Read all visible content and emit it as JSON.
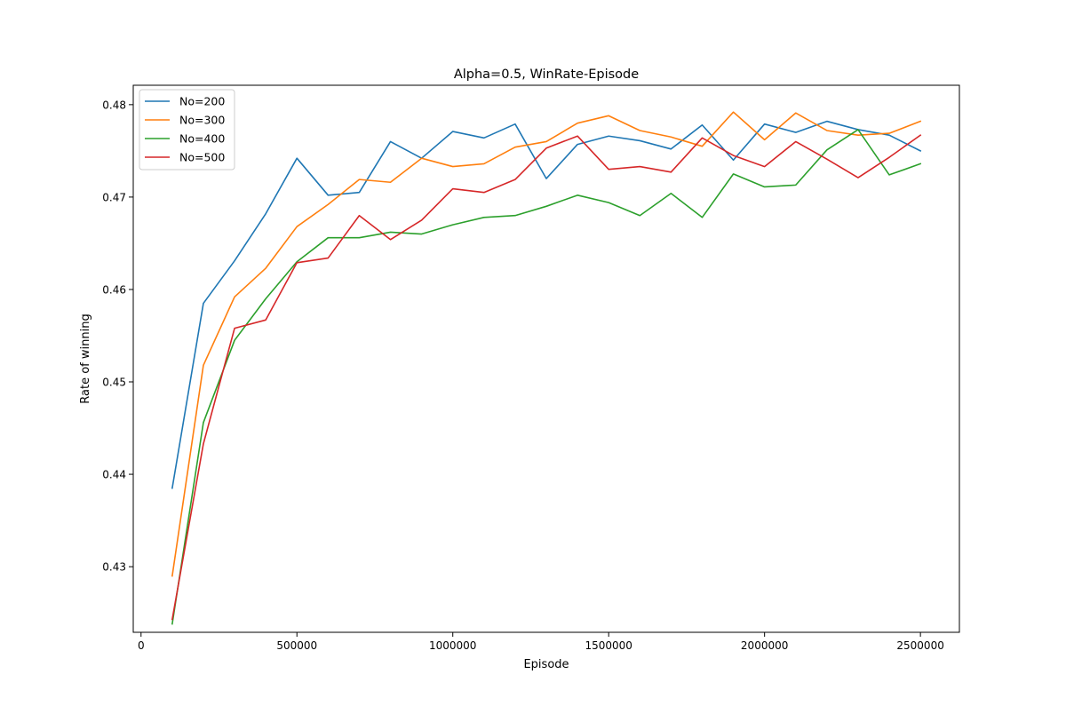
{
  "chart_data": {
    "type": "line",
    "title": "Alpha=0.5, WinRate-Episode",
    "xlabel": "Episode",
    "ylabel": "Rate of winning",
    "xlim": [
      -25000,
      2625000
    ],
    "ylim": [
      0.4229,
      0.4821
    ],
    "xticks": [
      0,
      500000,
      1000000,
      1500000,
      2000000,
      2500000
    ],
    "xtick_labels": [
      "0",
      "500000",
      "1000000",
      "1500000",
      "2000000",
      "2500000"
    ],
    "yticks": [
      0.43,
      0.44,
      0.45,
      0.46,
      0.47,
      0.48
    ],
    "ytick_labels": [
      "0.43",
      "0.44",
      "0.45",
      "0.46",
      "0.47",
      "0.48"
    ],
    "grid": false,
    "legend_position": "top-left",
    "x": [
      100000,
      200000,
      300000,
      400000,
      500000,
      600000,
      700000,
      800000,
      900000,
      1000000,
      1100000,
      1200000,
      1300000,
      1400000,
      1500000,
      1600000,
      1700000,
      1800000,
      1900000,
      2000000,
      2100000,
      2200000,
      2300000,
      2400000,
      2500000
    ],
    "series": [
      {
        "name": "No=200",
        "color": "#1f77b4",
        "values": [
          0.4385,
          0.4585,
          0.4631,
          0.4682,
          0.4742,
          0.4702,
          0.4705,
          0.476,
          0.4742,
          0.4771,
          0.4764,
          0.4779,
          0.472,
          0.4757,
          0.4766,
          0.4761,
          0.4752,
          0.4778,
          0.474,
          0.4779,
          0.477,
          0.4782,
          0.4773,
          0.4767,
          0.475
        ]
      },
      {
        "name": "No=300",
        "color": "#ff7f0e",
        "values": [
          0.429,
          0.4518,
          0.4592,
          0.4623,
          0.4668,
          0.4692,
          0.4719,
          0.4716,
          0.4742,
          0.4733,
          0.4736,
          0.4754,
          0.476,
          0.478,
          0.4788,
          0.4772,
          0.4765,
          0.4755,
          0.4792,
          0.4762,
          0.4791,
          0.4772,
          0.4767,
          0.4769,
          0.4782
        ]
      },
      {
        "name": "No=400",
        "color": "#2ca02c",
        "values": [
          0.4238,
          0.4456,
          0.4545,
          0.459,
          0.463,
          0.4656,
          0.4656,
          0.4662,
          0.466,
          0.467,
          0.4678,
          0.468,
          0.469,
          0.4702,
          0.4694,
          0.468,
          0.4704,
          0.4678,
          0.4725,
          0.4711,
          0.4713,
          0.4751,
          0.4773,
          0.4724,
          0.4736
        ]
      },
      {
        "name": "No=500",
        "color": "#d62728",
        "values": [
          0.4243,
          0.4433,
          0.4558,
          0.4567,
          0.4629,
          0.4634,
          0.468,
          0.4654,
          0.4675,
          0.4709,
          0.4705,
          0.4719,
          0.4753,
          0.4766,
          0.473,
          0.4733,
          0.4727,
          0.4764,
          0.4745,
          0.4733,
          0.476,
          0.4741,
          0.4721,
          0.4743,
          0.4767
        ]
      }
    ]
  }
}
